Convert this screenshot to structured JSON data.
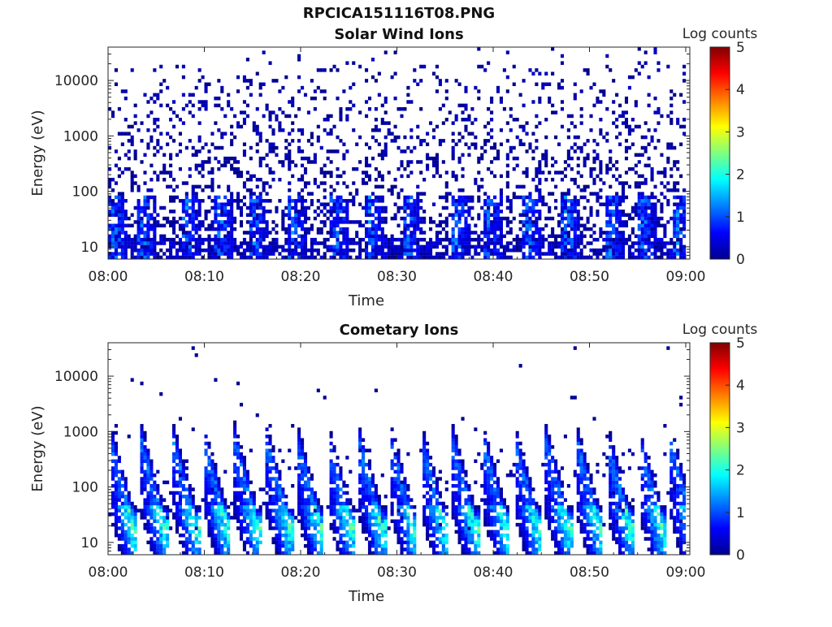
{
  "figure": {
    "filename": "RPCICA151116T08.PNG"
  },
  "chart_data": [
    {
      "type": "heatmap",
      "title": "Solar Wind Ions",
      "xlabel": "Time",
      "ylabel": "Energy (eV)",
      "x_ticks": [
        "08:00",
        "08:10",
        "08:20",
        "08:30",
        "08:40",
        "08:50",
        "09:00"
      ],
      "x_range": [
        "08:00",
        "09:00"
      ],
      "y_scale": "log",
      "y_ticks": [
        "10",
        "100",
        "1000",
        "10000"
      ],
      "y_range": [
        6,
        40000
      ],
      "colorbar": {
        "label": "Log counts",
        "range": [
          0,
          5
        ],
        "ticks": [
          "0",
          "1",
          "2",
          "3",
          "4",
          "5"
        ],
        "colormap": "jet"
      },
      "pattern": {
        "description_kind": "sparse",
        "low_energy_bursts_minutes": [
          0.5,
          3.5,
          8.0,
          11.5,
          15.0,
          19.0,
          23.5,
          27.0,
          31.0,
          36.0,
          39.5,
          43.5,
          47.5,
          52.0,
          55.5,
          59.0
        ],
        "max_log_counts": 1.5
      },
      "grid": false
    },
    {
      "type": "heatmap",
      "title": "Cometary Ions",
      "xlabel": "Time",
      "ylabel": "Energy (eV)",
      "x_ticks": [
        "08:00",
        "08:10",
        "08:20",
        "08:30",
        "08:40",
        "08:50",
        "09:00"
      ],
      "x_range": [
        "08:00",
        "09:00"
      ],
      "y_scale": "log",
      "y_ticks": [
        "10",
        "100",
        "1000",
        "10000"
      ],
      "y_range": [
        6,
        40000
      ],
      "colorbar": {
        "label": "Log counts",
        "range": [
          0,
          5
        ],
        "ticks": [
          "0",
          "1",
          "2",
          "3",
          "4",
          "5"
        ],
        "colormap": "jet"
      },
      "pattern": {
        "description_kind": "periodic_sweeps",
        "sweep_period_minutes": 3.2,
        "sweep_start_minutes": [
          0.3,
          3.5,
          6.8,
          10.0,
          13.2,
          16.5,
          19.7,
          22.9,
          26.1,
          29.4,
          32.6,
          35.8,
          39.0,
          42.3,
          45.5,
          48.7,
          51.9,
          55.2,
          58.4
        ],
        "peak_energy_eV": 20,
        "max_log_counts": 2.6
      },
      "grid": false
    }
  ]
}
